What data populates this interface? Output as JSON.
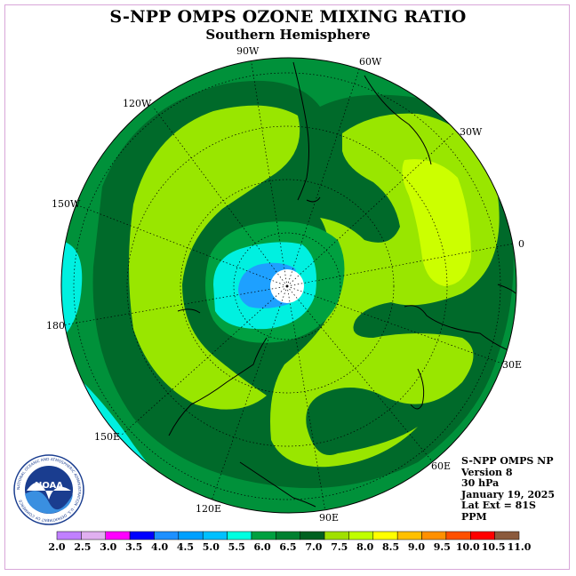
{
  "title": "S-NPP OMPS OZONE MIXING RATIO",
  "subtitle": "Southern Hemisphere",
  "longitude_labels": [
    {
      "text": "90W"
    },
    {
      "text": "60W"
    },
    {
      "text": "120W"
    },
    {
      "text": "30W"
    },
    {
      "text": "150W"
    },
    {
      "text": "0"
    },
    {
      "text": "180"
    },
    {
      "text": "30E"
    },
    {
      "text": "150E"
    },
    {
      "text": "60E"
    },
    {
      "text": "120E"
    },
    {
      "text": "90E"
    }
  ],
  "info": {
    "line1": "S-NPP OMPS NP",
    "line2": "Version 8",
    "line3": "30 hPa",
    "line4": "January 19, 2025",
    "line5": "Lat Ext = 81S",
    "line6": "PPM"
  },
  "logo": {
    "text": "NOAA",
    "ring_text": "NATIONAL OCEANIC AND ATMOSPHERIC ADMINISTRATION · U.S. DEPARTMENT OF COMMERCE"
  },
  "colorbar": {
    "ticks": [
      "2.0",
      "2.5",
      "3.0",
      "3.5",
      "4.0",
      "4.5",
      "5.0",
      "5.5",
      "6.0",
      "6.5",
      "7.0",
      "7.5",
      "8.0",
      "8.5",
      "9.0",
      "9.5",
      "10.0",
      "10.5",
      "11.0"
    ],
    "colors": [
      "#c080ff",
      "#e0b0f0",
      "#ff00ff",
      "#0000ff",
      "#1e90ff",
      "#00a0ff",
      "#00c0ff",
      "#00ffe0",
      "#00a040",
      "#008030",
      "#006020",
      "#a0e000",
      "#c0ff00",
      "#ffff00",
      "#ffc000",
      "#ff9000",
      "#ff5000",
      "#ff0000",
      "#8b5a3c"
    ]
  },
  "colors": {
    "green_dark": "#006a2a",
    "green_mid": "#009a40",
    "lime": "#99e600",
    "yellow_lime": "#ccff00",
    "cyan": "#00f0e0",
    "blue": "#1ea0ff"
  }
}
